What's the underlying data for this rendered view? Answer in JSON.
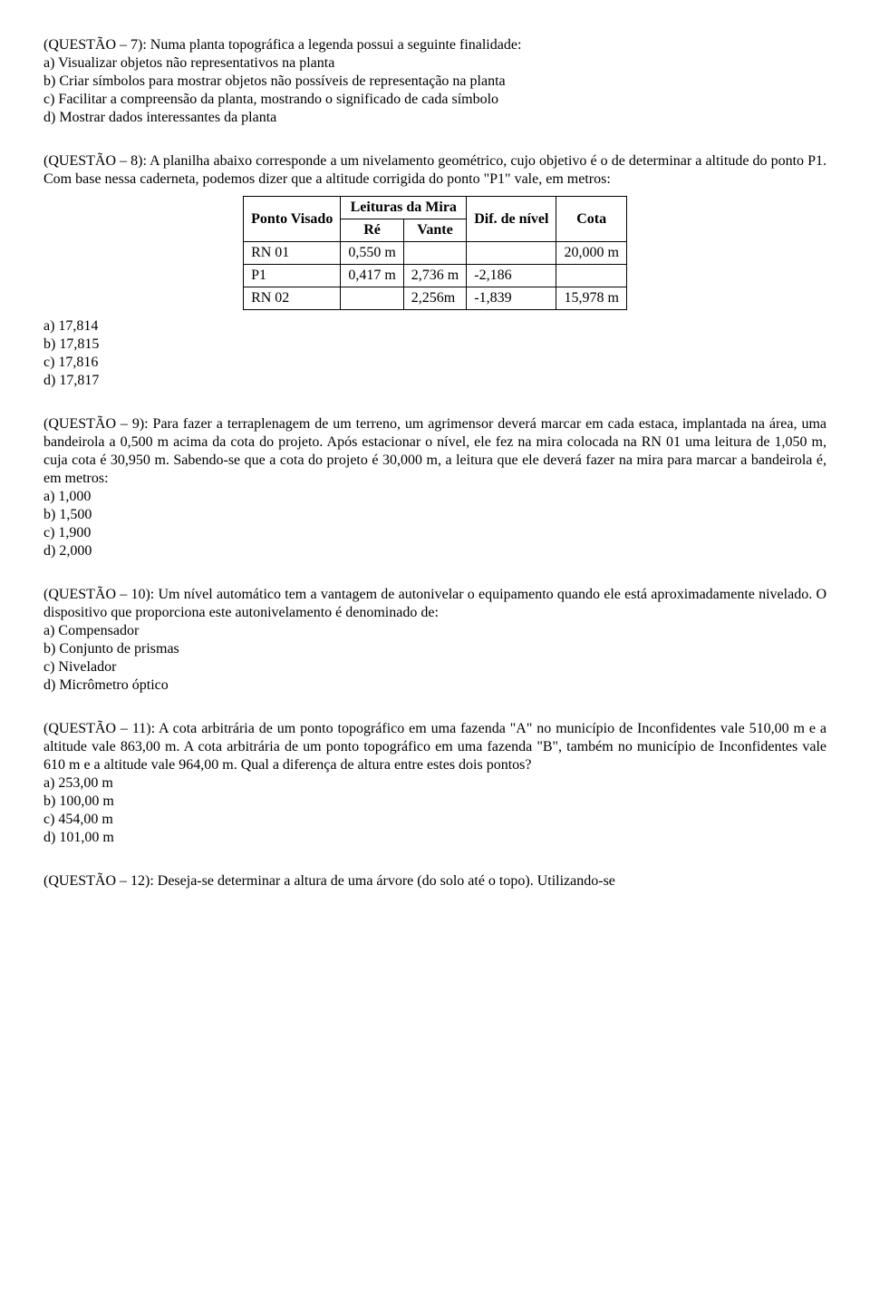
{
  "q7": {
    "prompt": "(QUESTÃO – 7): Numa planta topográfica a legenda possui a seguinte finalidade:",
    "a": "a) Visualizar objetos não representativos na planta",
    "b": "b) Criar símbolos para mostrar objetos não possíveis de representação na planta",
    "c": "c) Facilitar a compreensão da planta, mostrando o significado de cada símbolo",
    "d": "d) Mostrar dados interessantes da planta"
  },
  "q8": {
    "prompt": "(QUESTÃO – 8): A planilha abaixo corresponde a um nivelamento geométrico, cujo objetivo é o de determinar a altitude do ponto P1. Com base nessa caderneta, podemos dizer que a altitude corrigida do ponto \"P1\" vale, em metros:",
    "table": {
      "h_pv": "Ponto Visado",
      "h_leituras": "Leituras da Mira",
      "h_re": "Ré",
      "h_vante": "Vante",
      "h_dif": "Dif. de nível",
      "h_cota": "Cota",
      "rows": [
        {
          "pv": "RN 01",
          "re": "0,550 m",
          "vante": "",
          "dif": "",
          "cota": "20,000 m"
        },
        {
          "pv": "P1",
          "re": "0,417 m",
          "vante": "2,736 m",
          "dif": "-2,186",
          "cota": ""
        },
        {
          "pv": "RN 02",
          "re": "",
          "vante": "2,256m",
          "dif": "-1,839",
          "cota": "15,978 m"
        }
      ]
    },
    "a": "a) 17,814",
    "b": "b) 17,815",
    "c": "c) 17,816",
    "d": "d) 17,817"
  },
  "q9": {
    "prompt": "(QUESTÃO – 9): Para fazer a terraplenagem de um terreno, um agrimensor deverá marcar em cada estaca, implantada na área, uma bandeirola a 0,500 m acima da cota do projeto. Após estacionar o nível, ele fez na mira colocada na RN 01 uma leitura de 1,050 m, cuja cota é 30,950 m. Sabendo-se que a cota do projeto é 30,000 m, a leitura que ele deverá fazer na mira para marcar a bandeirola é, em metros:",
    "a": "a) 1,000",
    "b": "b) 1,500",
    "c": "c) 1,900",
    "d": "d) 2,000"
  },
  "q10": {
    "prompt": "(QUESTÃO – 10): Um nível automático tem a vantagem de autonivelar o equipamento quando ele está aproximadamente nivelado. O dispositivo que proporciona este autonivelamento é denominado de:",
    "a": "a) Compensador",
    "b": "b) Conjunto de prismas",
    "c": "c) Nivelador",
    "d": "d) Micrômetro óptico"
  },
  "q11": {
    "prompt": "(QUESTÃO – 11): A cota arbitrária de um ponto topográfico em uma fazenda \"A\" no município de Inconfidentes vale 510,00 m e a altitude vale 863,00 m. A cota arbitrária de um ponto topográfico em uma fazenda \"B\", também no município de Inconfidentes vale 610 m e a altitude vale 964,00 m. Qual a diferença de altura entre estes dois pontos?",
    "a": "a) 253,00 m",
    "b": "b) 100,00 m",
    "c": "c) 454,00 m",
    "d": "d) 101,00 m"
  },
  "q12": {
    "prompt": "(QUESTÃO – 12): Deseja-se determinar a altura de uma árvore (do solo até o topo). Utilizando-se"
  }
}
